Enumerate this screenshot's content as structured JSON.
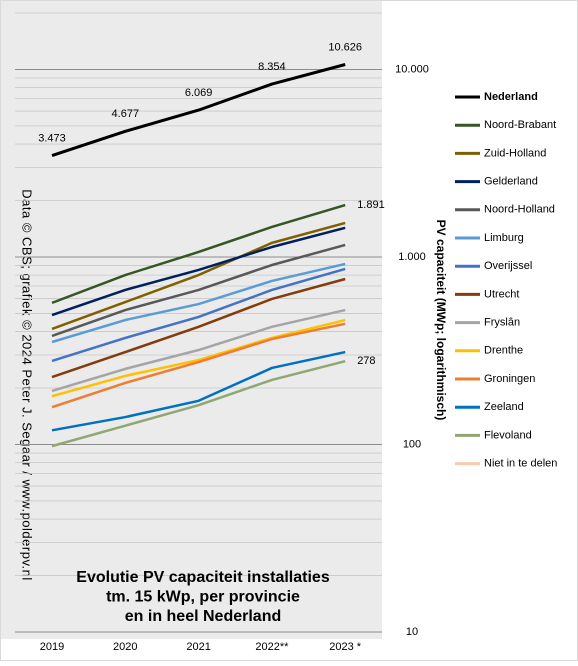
{
  "chart_data": {
    "type": "line",
    "title_lines": [
      "Evolutie PV capaciteit installaties",
      "tm. 15 kWp, per provincie",
      "en in heel Nederland"
    ],
    "source": "Data © CBS; grafiek © 2024 Peter J. Segaar / www.polderpv.nl",
    "y_label": "PV capaciteit (MWp; logarithmisch)",
    "categories": [
      "2019",
      "2020",
      "2021",
      "2022**",
      "2023 *"
    ],
    "log_scale": true,
    "grid": true,
    "ylim": [
      10,
      20000
    ],
    "yticks": [
      10,
      100,
      {
        "value": 1000,
        "label": "1.000"
      },
      {
        "value": 10000,
        "label": "10.000"
      }
    ],
    "legend": "right",
    "series": [
      {
        "name": "Nederland",
        "color": "#000000",
        "bold": true,
        "values": [
          3473,
          4677,
          6069,
          8354,
          10626
        ],
        "value_labels": [
          "3.473",
          "4.677",
          "6.069",
          "8.354",
          "10.626"
        ]
      },
      {
        "name": "Noord-Brabant",
        "color": "#375623",
        "values": [
          569,
          801,
          1063,
          1445,
          1891
        ],
        "value_labels": [
          null,
          null,
          null,
          null,
          "1.891"
        ]
      },
      {
        "name": "Zuid-Holland",
        "color": "#7f6000",
        "values": [
          413,
          575,
          801,
          1189,
          1518
        ]
      },
      {
        "name": "Gelderland",
        "color": "#002060",
        "values": [
          490,
          667,
          853,
          1130,
          1430
        ]
      },
      {
        "name": "Noord-Holland",
        "color": "#595959",
        "values": [
          379,
          521,
          667,
          906,
          1159
        ]
      },
      {
        "name": "Limburg",
        "color": "#5b9bd5",
        "values": [
          352,
          461,
          561,
          745,
          918
        ]
      },
      {
        "name": "Overijssel",
        "color": "#4472c4",
        "values": [
          279,
          370,
          479,
          667,
          863
        ]
      },
      {
        "name": "Utrecht",
        "color": "#843c0c",
        "values": [
          229,
          311,
          424,
          597,
          763
        ]
      },
      {
        "name": "Fryslân",
        "color": "#a5a5a5",
        "values": [
          193,
          253,
          319,
          424,
          521
        ]
      },
      {
        "name": "Drenthe",
        "color": "#ffc000",
        "values": [
          181,
          232,
          282,
          370,
          461
        ]
      },
      {
        "name": "Groningen",
        "color": "#ed7d31",
        "values": [
          158,
          213,
          275,
          365,
          440
        ]
      },
      {
        "name": "Zeeland",
        "color": "#0070c0",
        "values": [
          119,
          140,
          171,
          256,
          311
        ]
      },
      {
        "name": "Flevoland",
        "color": "#8fa872",
        "values": [
          98,
          126,
          162,
          221,
          278
        ],
        "value_labels": [
          null,
          null,
          null,
          null,
          "278"
        ]
      },
      {
        "name": "Niet in te delen",
        "color": "#f8cbad",
        "values": [
          null,
          null,
          null,
          null,
          null
        ]
      }
    ]
  }
}
